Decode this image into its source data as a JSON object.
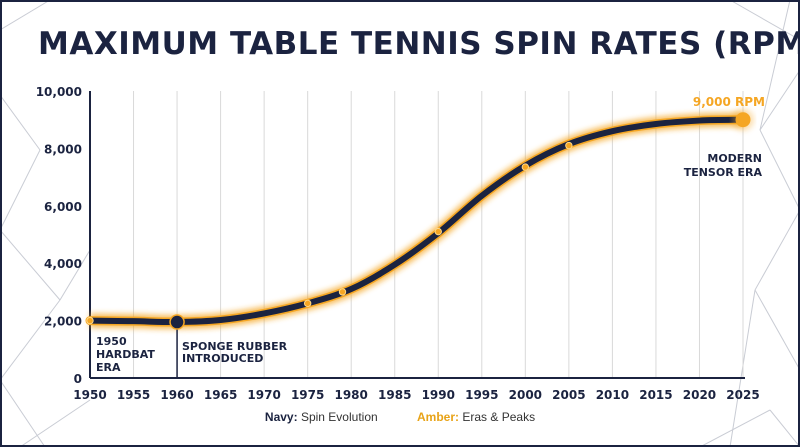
{
  "title": "MAXIMUM TABLE TENNIS SPIN RATES (RPM)",
  "colors": {
    "navy": "#1b2340",
    "amber": "#f5a623",
    "grid": "#d9d9d9"
  },
  "legend": {
    "navy_key": "Navy:",
    "navy_text": "Spin Evolution",
    "amber_key": "Amber:",
    "amber_text": "Eras & Peaks"
  },
  "chart_data": {
    "type": "line",
    "title": "MAXIMUM TABLE TENNIS SPIN RATES (RPM)",
    "xlabel": "",
    "ylabel": "",
    "xlim": [
      1950,
      2025
    ],
    "ylim": [
      0,
      10000
    ],
    "x_ticks": [
      1950,
      1955,
      1960,
      1965,
      1970,
      1975,
      1980,
      1985,
      1990,
      1995,
      2000,
      2005,
      2010,
      2015,
      2020,
      2025
    ],
    "y_ticks": [
      0,
      2000,
      4000,
      6000,
      8000,
      10000
    ],
    "y_tick_labels": [
      "0",
      "2,000",
      "4,000",
      "6,000",
      "8,000",
      "10,000"
    ],
    "grid": "vertical",
    "series": [
      {
        "x": [
          1950,
          1955,
          1960,
          1965,
          1970,
          1975,
          1980,
          1985,
          1990,
          1995,
          2000,
          2005,
          2010,
          2015,
          2020,
          2025
        ],
        "y": [
          2000,
          1980,
          1950,
          2020,
          2250,
          2600,
          3100,
          3950,
          5050,
          6350,
          7400,
          8150,
          8600,
          8850,
          8970,
          9000
        ]
      }
    ],
    "points": [
      {
        "x": 1950,
        "y": 2000
      },
      {
        "x": 1975,
        "y": 2600
      },
      {
        "x": 1979,
        "y": 3000
      },
      {
        "x": 1990,
        "y": 5100
      },
      {
        "x": 2000,
        "y": 7350
      },
      {
        "x": 2005,
        "y": 8100
      }
    ],
    "markers": [
      {
        "x": 1960,
        "y": 1950,
        "style": "navy"
      },
      {
        "x": 2025,
        "y": 9000,
        "style": "amber"
      }
    ],
    "annotations": [
      {
        "id": "hardbat",
        "lines": [
          "1950",
          "HARDBAT",
          "ERA"
        ],
        "x": 1950
      },
      {
        "id": "sponge",
        "lines": [
          "SPONGE RUBBER",
          "INTRODUCED"
        ],
        "x": 1960
      },
      {
        "id": "tensor",
        "lines": [
          "MODERN",
          "TENSOR ERA"
        ],
        "x": 2025
      },
      {
        "id": "peak",
        "lines": [
          "9,000 RPM"
        ],
        "x": 2025,
        "y": 9000
      }
    ]
  }
}
